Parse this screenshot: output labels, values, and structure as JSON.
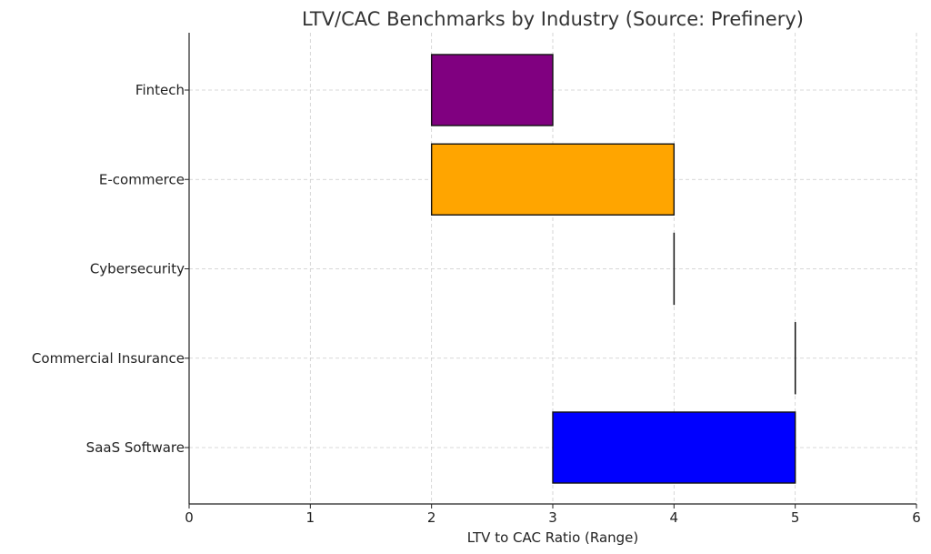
{
  "chart_data": {
    "type": "bar",
    "orientation": "horizontal",
    "title": "LTV/CAC Benchmarks by Industry (Source: Prefinery)",
    "xlabel": "LTV to CAC Ratio (Range)",
    "ylabel": "",
    "xlim": [
      0,
      6
    ],
    "xticks": [
      0,
      1,
      2,
      3,
      4,
      5,
      6
    ],
    "grid": true,
    "categories": [
      "SaaS Software",
      "Commercial Insurance",
      "Cybersecurity",
      "E-commerce",
      "Fintech"
    ],
    "ranges": [
      {
        "category": "SaaS Software",
        "start": 3,
        "end": 5,
        "color": "#0000ff"
      },
      {
        "category": "Commercial Insurance",
        "start": 5,
        "end": 5,
        "color": "#00bfbf"
      },
      {
        "category": "Cybersecurity",
        "start": 4,
        "end": 4,
        "color": "#ff0000"
      },
      {
        "category": "E-commerce",
        "start": 2,
        "end": 4,
        "color": "#ffa500"
      },
      {
        "category": "Fintech",
        "start": 2,
        "end": 3,
        "color": "#800080"
      }
    ]
  }
}
